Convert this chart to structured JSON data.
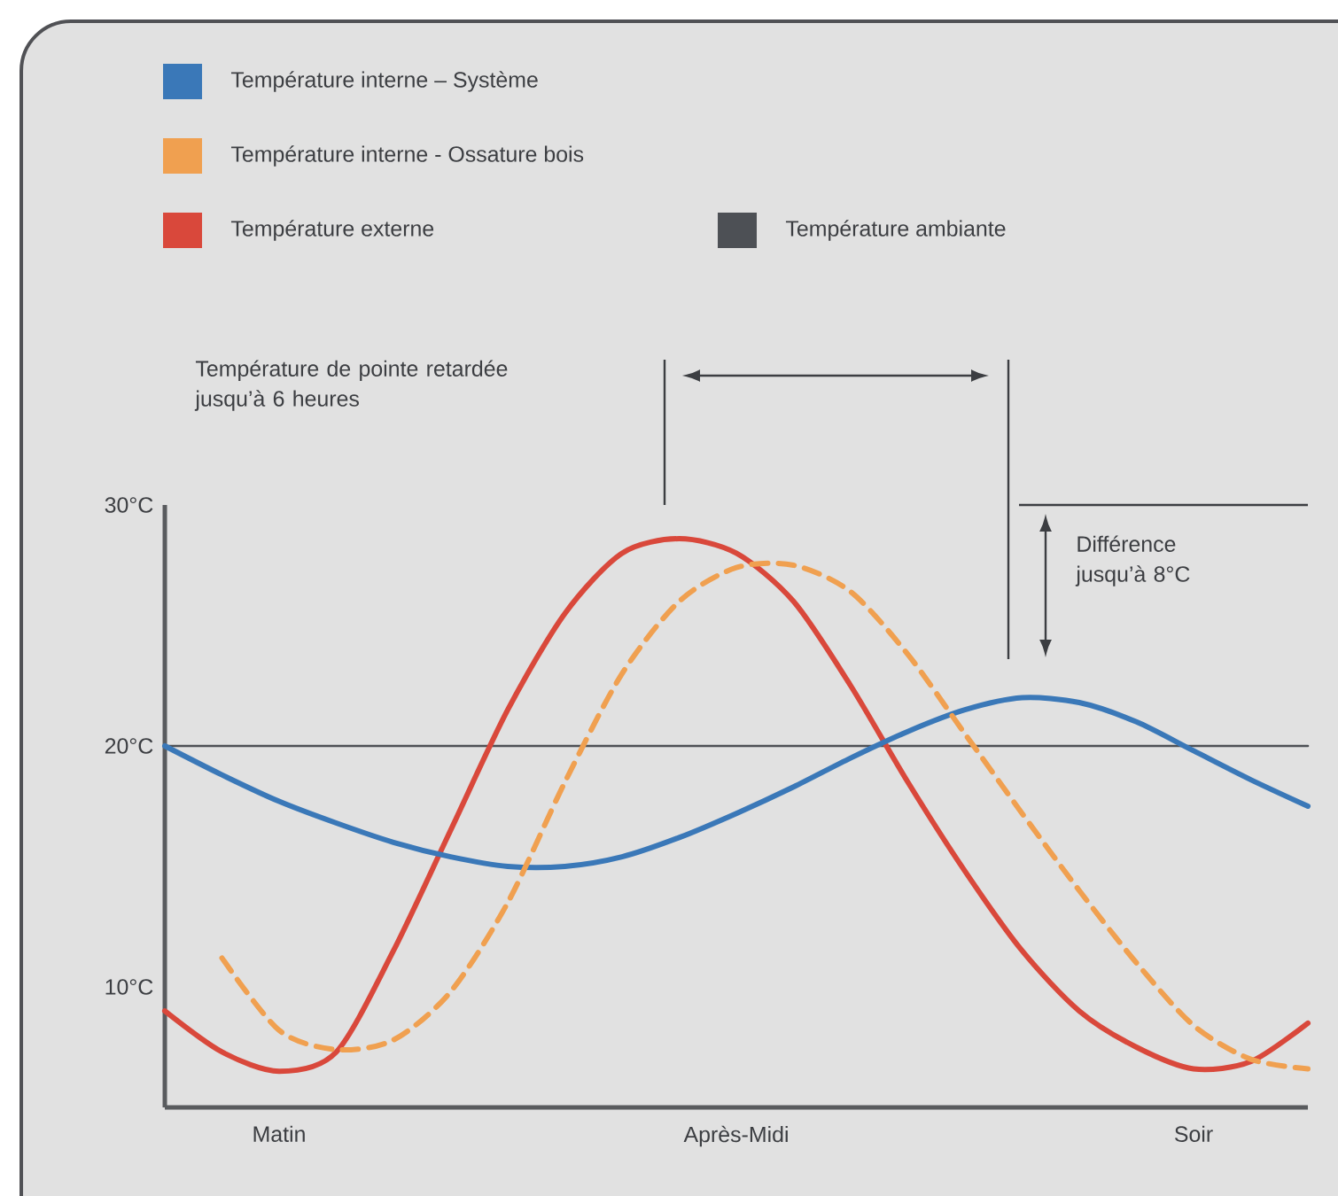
{
  "chart_data": {
    "type": "line",
    "legend": "top left",
    "ylim": [
      5,
      30
    ],
    "categories": [
      null,
      null,
      "Matin",
      null,
      null,
      null,
      null,
      null,
      null,
      null,
      "Après-Midi",
      null,
      null,
      null,
      null,
      null,
      null,
      null,
      "Soir",
      null,
      null
    ],
    "yticks": [
      {
        "value": 10,
        "label": "10°C"
      },
      {
        "value": 20,
        "label": "20°C"
      },
      {
        "value": 30,
        "label": "30°C"
      }
    ],
    "series": [
      {
        "name": "Température interne – Système",
        "color": "#3a78b8",
        "values": [
          20,
          18.8,
          17.7,
          16.8,
          16,
          15.4,
          15,
          15,
          15.4,
          16.2,
          17.2,
          18.3,
          19.5,
          20.6,
          21.5,
          22,
          21.8,
          21,
          19.8,
          18.6,
          17.5
        ]
      },
      {
        "name": "Température interne - Ossature bois",
        "color": "#f0a050",
        "line_style": "dashed",
        "values": [
          null,
          11.2,
          8.2,
          7.4,
          7.8,
          9.8,
          13.5,
          18.5,
          23,
          26,
          27.4,
          27.5,
          26.4,
          23.8,
          20.5,
          17.2,
          14,
          11,
          8.4,
          7,
          6.6
        ]
      },
      {
        "name": "Température externe",
        "color": "#d9483b",
        "values": [
          9,
          7.3,
          6.5,
          7.3,
          11.5,
          16.5,
          21.5,
          25.5,
          28,
          28.6,
          28,
          26,
          22.5,
          18.5,
          14.8,
          11.5,
          9,
          7.5,
          6.6,
          6.9,
          8.5
        ]
      },
      {
        "name": "Température ambiante",
        "color": "#4d5055",
        "values": [
          20,
          20,
          20,
          20,
          20,
          20,
          20,
          20,
          20,
          20,
          20,
          20,
          20,
          20,
          20,
          20,
          20,
          20,
          20,
          20,
          20
        ]
      }
    ],
    "annotations": [
      "Température de pointe retardée jusqu’à 6 heures",
      "Différence jusqu’à 8°C"
    ]
  }
}
